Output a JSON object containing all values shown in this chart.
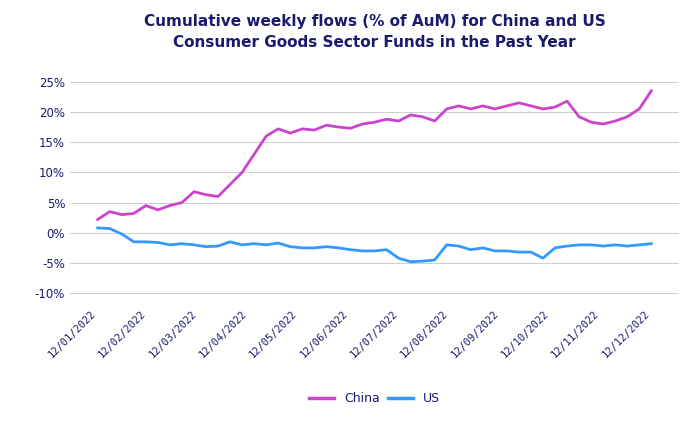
{
  "title": "Cumulative weekly flows (% of AuM) for China and US\nConsumer Goods Sector Funds in the Past Year",
  "title_color": "#1a1a6e",
  "background_color": "#ffffff",
  "grid_color": "#d0d0d0",
  "legend_labels": [
    "China",
    "US"
  ],
  "china_color": "#cc44cc",
  "us_color": "#3399ff",
  "line_width": 2.0,
  "ylim": [
    -12,
    28
  ],
  "yticks": [
    -10,
    -5,
    0,
    5,
    10,
    15,
    20,
    25
  ],
  "xtick_labels": [
    "12/01/2022",
    "12/02/2022",
    "12/03/2022",
    "12/04/2022",
    "12/05/2022",
    "12/06/2022",
    "12/07/2022",
    "12/08/2022",
    "12/09/2022",
    "12/10/2022",
    "12/11/2022",
    "12/12/2022"
  ],
  "china_values": [
    2.2,
    3.5,
    3.0,
    3.2,
    4.5,
    3.8,
    4.5,
    5.0,
    6.8,
    6.3,
    6.0,
    8.0,
    10.0,
    13.0,
    16.0,
    17.2,
    16.5,
    17.2,
    17.0,
    17.8,
    17.5,
    17.3,
    18.0,
    18.3,
    18.8,
    18.5,
    19.5,
    19.2,
    18.5,
    20.5,
    21.0,
    20.5,
    21.0,
    20.5,
    21.0,
    21.5,
    21.0,
    20.5,
    20.8,
    21.8,
    19.2,
    18.3,
    18.0,
    18.5,
    19.2,
    20.5,
    23.5
  ],
  "us_values": [
    0.8,
    0.7,
    -0.2,
    -1.5,
    -1.5,
    -1.6,
    -2.0,
    -1.8,
    -2.0,
    -2.3,
    -2.2,
    -1.5,
    -2.0,
    -1.8,
    -2.0,
    -1.7,
    -2.3,
    -2.5,
    -2.5,
    -2.3,
    -2.5,
    -2.8,
    -3.0,
    -3.0,
    -2.8,
    -4.2,
    -4.8,
    -4.7,
    -4.5,
    -2.0,
    -2.2,
    -2.8,
    -2.5,
    -3.0,
    -3.0,
    -3.2,
    -3.2,
    -4.2,
    -2.5,
    -2.2,
    -2.0,
    -2.0,
    -2.2,
    -2.0,
    -2.2,
    -2.0,
    -1.8
  ]
}
